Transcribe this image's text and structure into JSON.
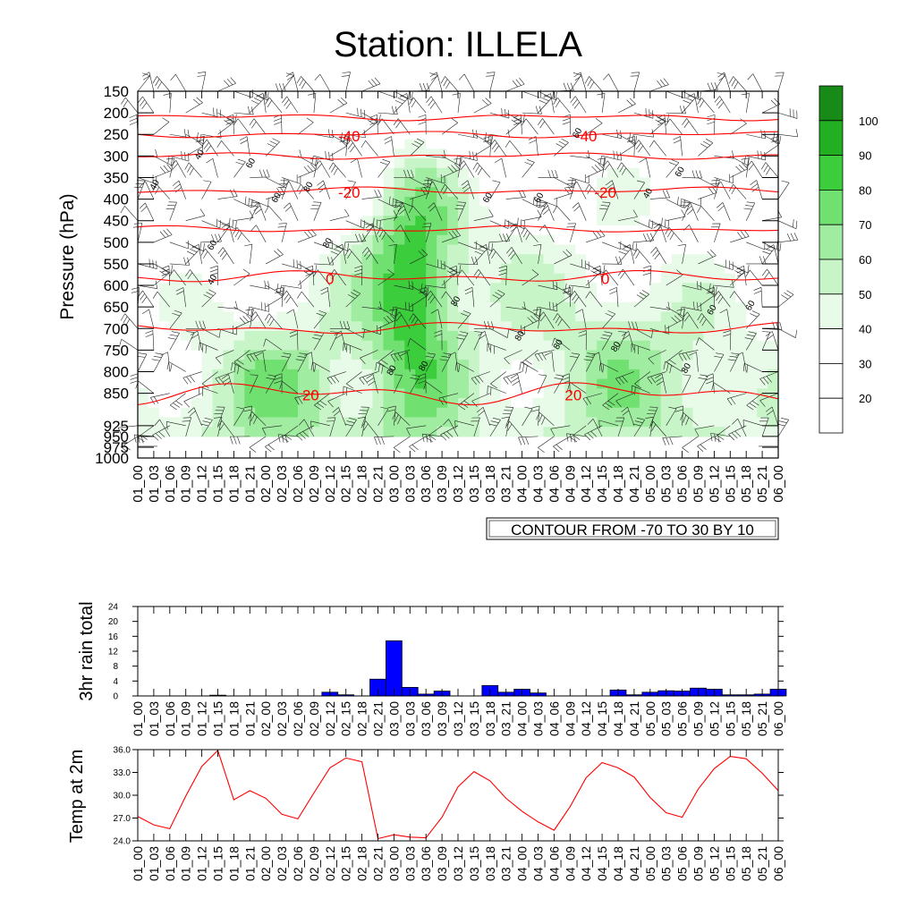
{
  "title": "Station: ILLELA",
  "colors": {
    "temp_line": "#ff0000",
    "rain_bar": "#0000ff",
    "isotherm": "#ff0000"
  },
  "time_labels": [
    "01_00",
    "01_03",
    "01_06",
    "01_09",
    "01_12",
    "01_15",
    "01_18",
    "01_21",
    "02_00",
    "02_03",
    "02_06",
    "02_09",
    "02_12",
    "02_15",
    "02_18",
    "02_21",
    "03_00",
    "03_03",
    "03_06",
    "03_09",
    "03_12",
    "03_15",
    "03_18",
    "03_21",
    "04_00",
    "04_03",
    "04_06",
    "04_09",
    "04_12",
    "04_15",
    "04_18",
    "04_21",
    "05_00",
    "05_03",
    "05_06",
    "05_09",
    "05_12",
    "05_15",
    "05_18",
    "05_21",
    "06_00"
  ],
  "chart_data": [
    {
      "type": "heatmap",
      "name_hint": "relative humidity cross-section with wind barbs and temperature contours",
      "ylabel": "Pressure (hPa)",
      "y_ticks": [
        150,
        200,
        250,
        300,
        350,
        400,
        450,
        500,
        550,
        600,
        650,
        700,
        750,
        800,
        850,
        925,
        950,
        975,
        1000
      ],
      "contour_info": "CONTOUR FROM -70 TO 30 BY 10",
      "colorbar_labels": [
        20,
        30,
        40,
        50,
        60,
        70,
        80,
        90,
        100
      ],
      "colorbar_colors": [
        "#ffffff",
        "#ffffff",
        "#ffffff",
        "#e8fbe8",
        "#c8f5c8",
        "#a0eca0",
        "#70e070",
        "#3ccd3c",
        "#22b022",
        "#178a17"
      ],
      "temperature_contours": [
        {
          "label": "-40",
          "pressure": 250
        },
        {
          "label": "-20",
          "pressure": 380
        },
        {
          "label": "0",
          "pressure": 580
        },
        {
          "label": "20",
          "pressure": 850
        }
      ],
      "humidity_labels": [
        "40",
        "60",
        "80"
      ]
    },
    {
      "type": "bar",
      "ylabel": "3hr rain total",
      "ylim": [
        0,
        24
      ],
      "y_ticks": [
        0,
        4,
        8,
        12,
        16,
        20,
        24
      ],
      "values": [
        0,
        0,
        0,
        0,
        0,
        0.2,
        0,
        0,
        0,
        0,
        0,
        0,
        1,
        0.3,
        0,
        4.5,
        14.8,
        2.3,
        0.5,
        1.3,
        0,
        0,
        2.8,
        1,
        1.8,
        0.8,
        0,
        0,
        0,
        0,
        1.6,
        0.3,
        1,
        1.4,
        1.3,
        2.1,
        1.8,
        0.3,
        0.3,
        0.5,
        1.8
      ]
    },
    {
      "type": "line",
      "ylabel": "Temp at 2m",
      "ylim": [
        24.0,
        36.0
      ],
      "y_ticks": [
        "24.0",
        "27.0",
        "30.0",
        "33.0",
        "36.0"
      ],
      "values": [
        27.2,
        26.1,
        25.6,
        29.9,
        33.8,
        35.9,
        29.4,
        30.6,
        29.6,
        27.5,
        26.9,
        30.3,
        33.6,
        34.9,
        34.4,
        24.3,
        24.8,
        24.5,
        24.4,
        27.1,
        31.1,
        33.1,
        31.9,
        29.6,
        27.9,
        26.5,
        25.4,
        28.5,
        32.3,
        34.3,
        33.6,
        32.4,
        29.7,
        27.7,
        27.1,
        30.8,
        33.5,
        35.1,
        34.8,
        32.9,
        30.6
      ]
    }
  ]
}
